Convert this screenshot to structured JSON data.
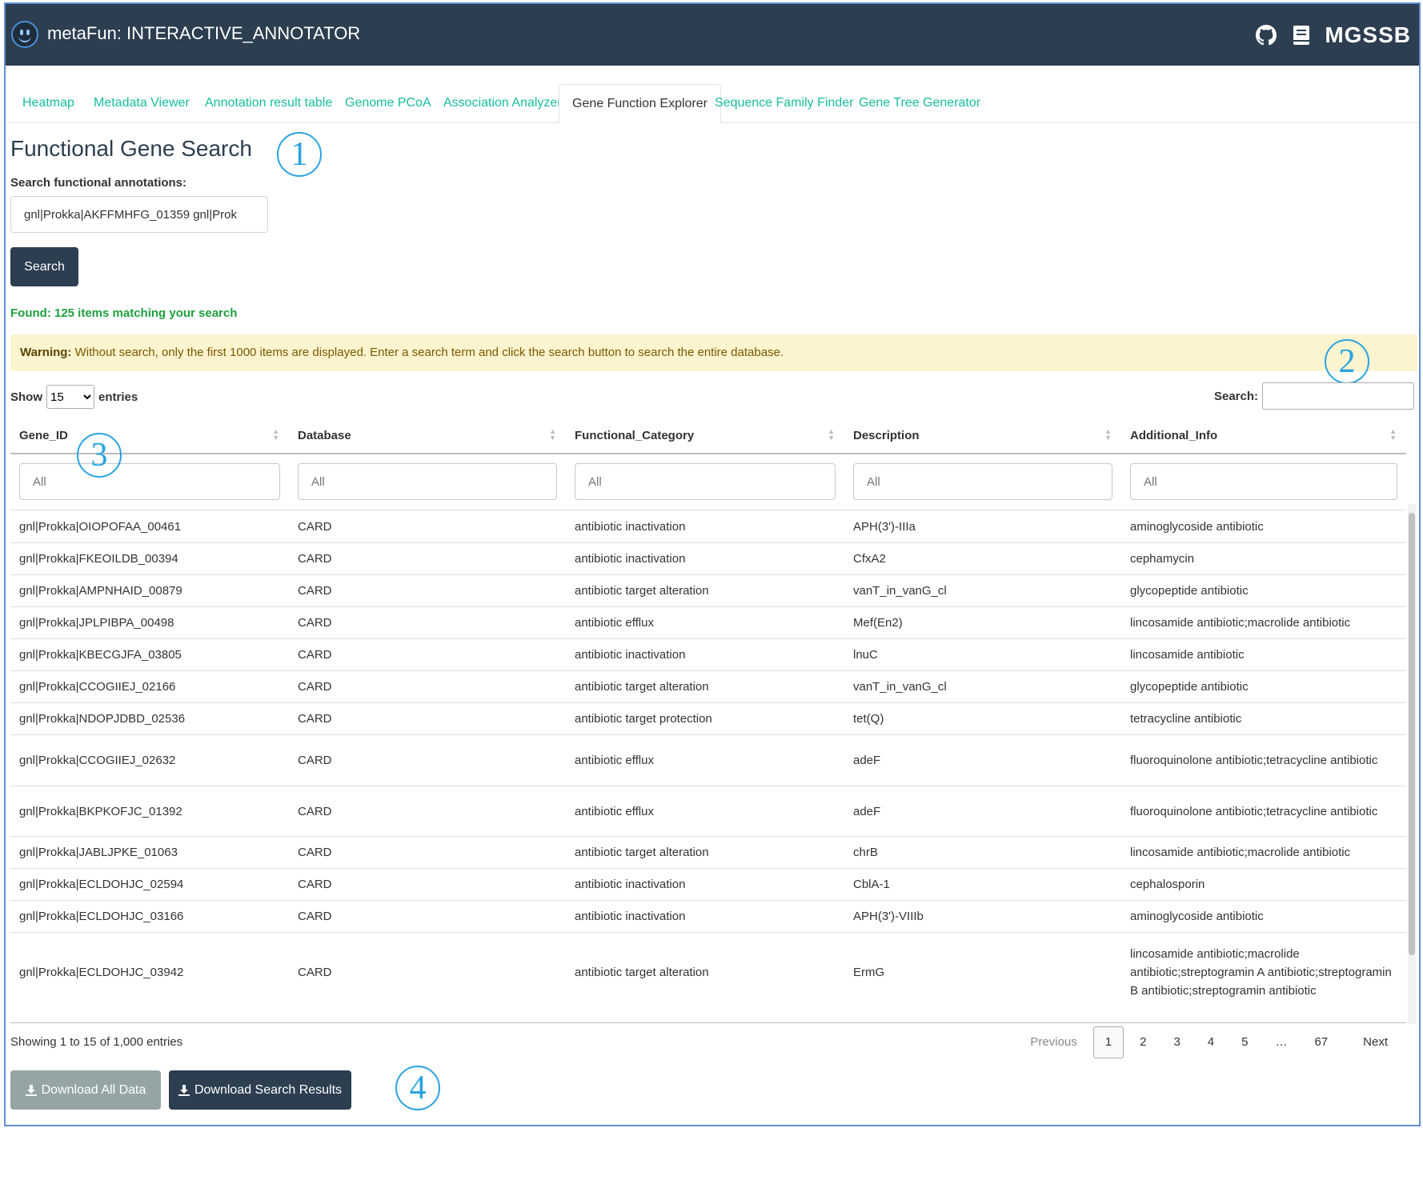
{
  "app": {
    "title": "metaFun: INTERACTIVE_ANNOTATOR",
    "brand": "MGSSB",
    "icons": [
      "github-icon",
      "book-icon"
    ]
  },
  "tabs": [
    {
      "label": "Heatmap",
      "active": false
    },
    {
      "label": "Metadata Viewer",
      "active": false
    },
    {
      "label": "Annotation result table",
      "active": false
    },
    {
      "label": "Genome PCoA",
      "active": false
    },
    {
      "label": "Association Analyzer",
      "active": false
    },
    {
      "label": "Gene Function Explorer",
      "active": true
    },
    {
      "label": "Sequence Family Finder",
      "active": false
    },
    {
      "label": "Gene Tree Generator",
      "active": false
    }
  ],
  "section": {
    "title": "Functional Gene Search",
    "search_label": "Search functional annotations:",
    "search_value": "gnl|Prokka|AKFFMHFG_01359 gnl|Prok",
    "search_button": "Search",
    "found_text": "Found: 125 items matching your search",
    "warning_bold": "Warning:",
    "warning_text": " Without search, only the first 1000 items are displayed. Enter a search term and click the search button to search the entire database."
  },
  "annotations": {
    "c1": "1",
    "c2": "2",
    "c3": "3",
    "c4": "4"
  },
  "table_controls": {
    "show_label": "Show",
    "entries_value": "15",
    "entries_label": "entries",
    "search_label": "Search:"
  },
  "table": {
    "columns": [
      "Gene_ID",
      "Database",
      "Functional_Category",
      "Description",
      "Additional_Info"
    ],
    "filter_placeholder": "All",
    "rows": [
      [
        "gnl|Prokka|OIOPOFAA_00461",
        "CARD",
        "antibiotic inactivation",
        "APH(3')-IIIa",
        "aminoglycoside antibiotic"
      ],
      [
        "gnl|Prokka|FKEOILDB_00394",
        "CARD",
        "antibiotic inactivation",
        "CfxA2",
        "cephamycin"
      ],
      [
        "gnl|Prokka|AMPNHAID_00879",
        "CARD",
        "antibiotic target alteration",
        "vanT_in_vanG_cl",
        "glycopeptide antibiotic"
      ],
      [
        "gnl|Prokka|JPLPIBPA_00498",
        "CARD",
        "antibiotic efflux",
        "Mef(En2)",
        "lincosamide antibiotic;macrolide antibiotic"
      ],
      [
        "gnl|Prokka|KBECGJFA_03805",
        "CARD",
        "antibiotic inactivation",
        "lnuC",
        "lincosamide antibiotic"
      ],
      [
        "gnl|Prokka|CCOGIIEJ_02166",
        "CARD",
        "antibiotic target alteration",
        "vanT_in_vanG_cl",
        "glycopeptide antibiotic"
      ],
      [
        "gnl|Prokka|NDOPJDBD_02536",
        "CARD",
        "antibiotic target protection",
        "tet(Q)",
        "tetracycline antibiotic"
      ],
      [
        "gnl|Prokka|CCOGIIEJ_02632",
        "CARD",
        "antibiotic efflux",
        "adeF",
        "fluoroquinolone antibiotic;tetracycline antibiotic"
      ],
      [
        "gnl|Prokka|BKPKOFJC_01392",
        "CARD",
        "antibiotic efflux",
        "adeF",
        "fluoroquinolone antibiotic;tetracycline antibiotic"
      ],
      [
        "gnl|Prokka|JABLJPKE_01063",
        "CARD",
        "antibiotic target alteration",
        "chrB",
        "lincosamide antibiotic;macrolide antibiotic"
      ],
      [
        "gnl|Prokka|ECLDOHJC_02594",
        "CARD",
        "antibiotic inactivation",
        "CblA-1",
        "cephalosporin"
      ],
      [
        "gnl|Prokka|ECLDOHJC_03166",
        "CARD",
        "antibiotic inactivation",
        "APH(3')-VIIIb",
        "aminoglycoside antibiotic"
      ],
      [
        "gnl|Prokka|ECLDOHJC_03942",
        "CARD",
        "antibiotic target alteration",
        "ErmG",
        "lincosamide antibiotic;macrolide antibiotic;streptogramin A antibiotic;streptogramin B antibiotic;streptogramin antibiotic"
      ]
    ]
  },
  "footer": {
    "info": "Showing 1 to 15 of 1,000 entries",
    "previous": "Previous",
    "pages": [
      "1",
      "2",
      "3",
      "4",
      "5",
      "…",
      "67"
    ],
    "current_page": "1",
    "next": "Next",
    "download_all": "Download All Data",
    "download_results": "Download Search Results"
  },
  "colors": {
    "navbar": "#2c3e50",
    "tab_link": "#18bc9c",
    "found_text": "#1e9e3e",
    "warning_bg": "#fcf3cf",
    "annotation_circle": "#29a3e0",
    "download_all_bg": "#95a5a6"
  }
}
